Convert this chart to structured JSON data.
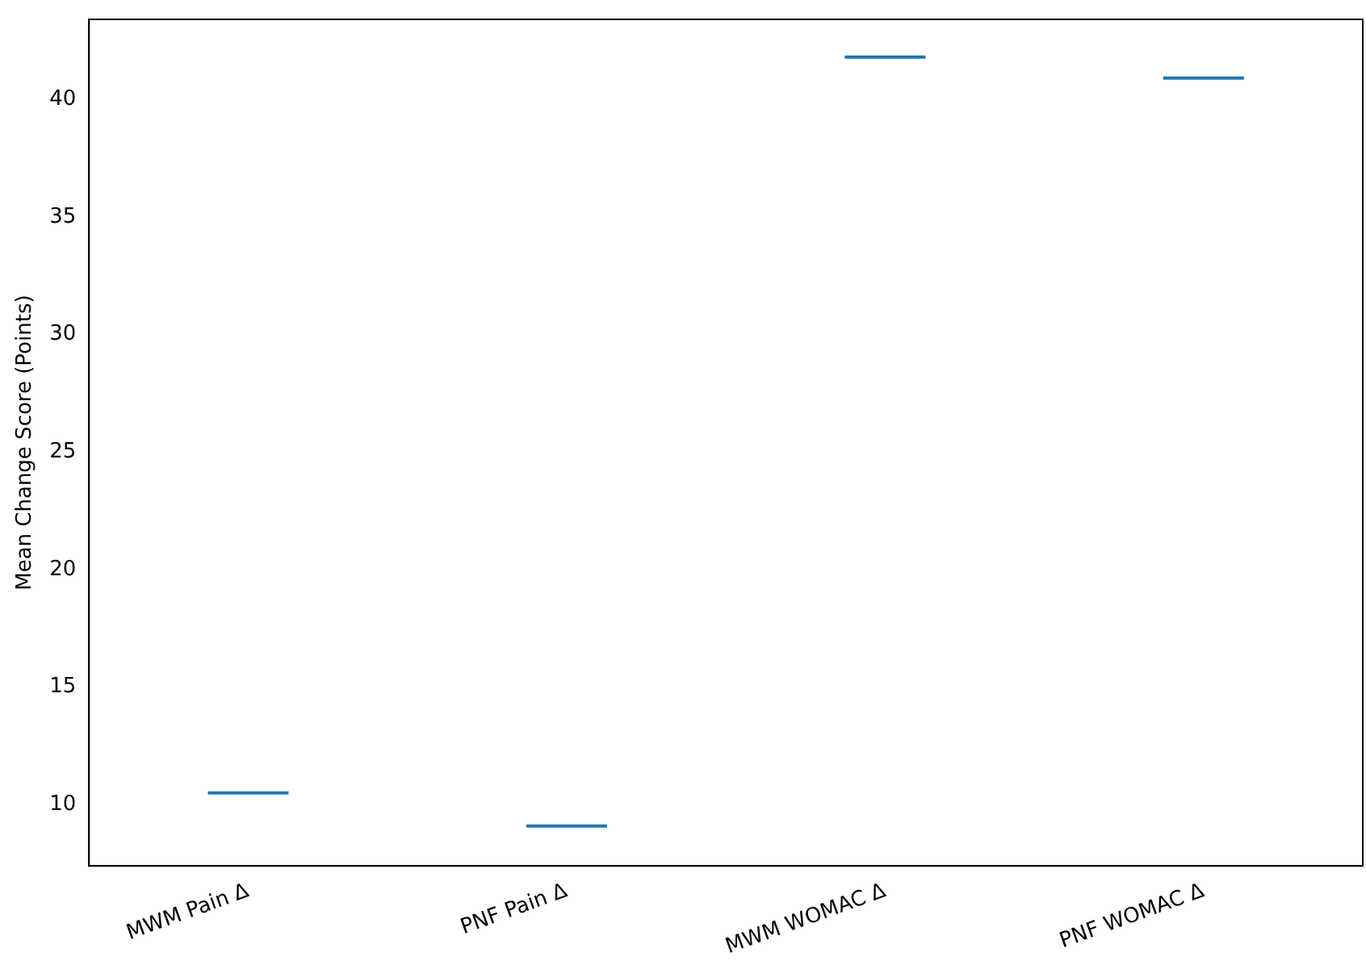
{
  "chart_data": {
    "type": "box",
    "ylabel": "Mean Change Score (Points)",
    "categories": [
      "MWM Pain Δ",
      "PNF Pain Δ",
      "MWM WOMAC Δ",
      "PNF WOMAC Δ"
    ],
    "series": [
      {
        "color": "#1f77b4",
        "boxes": [
          {
            "low": 10.5,
            "q1": 10.5,
            "median": 10.5,
            "q3": 10.5,
            "high": 10.5
          },
          {
            "low": 9.1,
            "q1": 9.1,
            "median": 9.1,
            "q3": 9.1,
            "high": 9.1
          },
          {
            "low": 41.8,
            "q1": 41.8,
            "median": 41.8,
            "q3": 41.8,
            "high": 41.8
          },
          {
            "low": 40.9,
            "q1": 40.9,
            "median": 40.9,
            "q3": 40.9,
            "high": 40.9
          }
        ]
      }
    ],
    "ylim": [
      7.4,
      43.4
    ],
    "yticks": [
      10,
      15,
      20,
      25,
      30,
      35,
      40
    ],
    "grid": false,
    "legend": false
  }
}
